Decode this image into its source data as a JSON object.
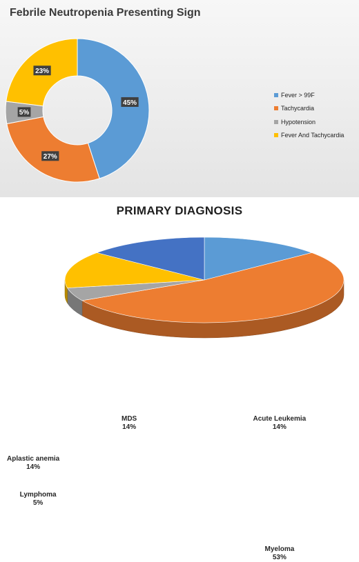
{
  "chart_data": [
    {
      "type": "pie",
      "subtype": "doughnut",
      "title": "Febrile Neutropenia Presenting Sign",
      "categories": [
        "Fever > 99F",
        "Tachycardia",
        "Hypotension",
        "Fever And Tachycardia"
      ],
      "values": [
        45,
        27,
        5,
        23
      ],
      "value_labels": [
        "45%",
        "27%",
        "5%",
        "23%"
      ],
      "colors": [
        "#5b9bd5",
        "#ed7d31",
        "#a5a5a5",
        "#ffc000"
      ],
      "legend": "right",
      "background": "gradient-gray"
    },
    {
      "type": "pie",
      "subtype": "3d",
      "title": "PRIMARY DIAGNOSIS",
      "categories": [
        "Acute Leukemia",
        "Myeloma",
        "Lymphoma",
        "Aplastic anemia",
        "MDS"
      ],
      "values": [
        14,
        53,
        5,
        14,
        14
      ],
      "value_labels": [
        "14%",
        "53%",
        "5%",
        "14%",
        "14%"
      ],
      "colors": [
        "#5b9bd5",
        "#ed7d31",
        "#a5a5a5",
        "#ffc000",
        "#4472c4"
      ],
      "legend": "none"
    }
  ]
}
